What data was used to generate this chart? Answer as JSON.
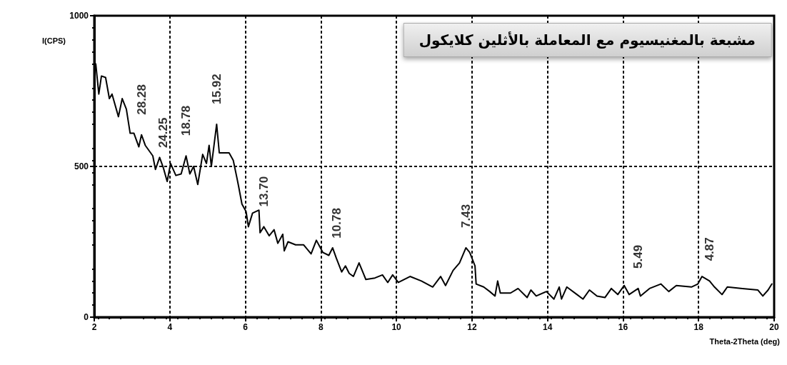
{
  "chart_data": {
    "type": "line",
    "title": "مشبعة بالمغنيسيوم مع المعاملة بالأثلين كلايكول",
    "xlabel": "Theta-2Theta (deg)",
    "ylabel": "I(CPS)",
    "xlim": [
      2,
      20
    ],
    "xticks": [
      2,
      4,
      6,
      8,
      10,
      12,
      14,
      16,
      18,
      20
    ],
    "ylim": [
      0,
      1000
    ],
    "yticks": [
      0,
      500,
      1000
    ],
    "grid": true,
    "marker": "none",
    "line_style": "solid",
    "series": [
      {
        "color": "#000000",
        "x": [
          2.04,
          2.12,
          2.19,
          2.3,
          2.4,
          2.47,
          2.64,
          2.74,
          2.85,
          2.95,
          3.05,
          3.18,
          3.25,
          3.35,
          3.55,
          3.62,
          3.73,
          3.83,
          3.93,
          4.02,
          4.16,
          4.3,
          4.43,
          4.53,
          4.63,
          4.74,
          4.87,
          4.97,
          5.04,
          5.1,
          5.24,
          5.31,
          5.44,
          5.57,
          5.68,
          5.78,
          5.82,
          5.91,
          6.02,
          6.08,
          6.19,
          6.36,
          6.39,
          6.49,
          6.63,
          6.76,
          6.86,
          6.99,
          7.03,
          7.13,
          7.33,
          7.54,
          7.74,
          7.88,
          8.05,
          8.21,
          8.31,
          8.41,
          8.55,
          8.65,
          8.75,
          8.86,
          9.01,
          9.19,
          9.43,
          9.63,
          9.77,
          9.9,
          10.05,
          10.36,
          10.66,
          10.96,
          11.17,
          11.3,
          11.5,
          11.67,
          11.84,
          11.94,
          12.08,
          12.11,
          12.31,
          12.47,
          12.61,
          12.68,
          12.75,
          13.02,
          13.22,
          13.46,
          13.56,
          13.7,
          13.97,
          14.17,
          14.31,
          14.37,
          14.51,
          14.78,
          14.94,
          15.11,
          15.31,
          15.52,
          15.69,
          15.86,
          16.03,
          16.16,
          16.4,
          16.46,
          16.7,
          17.0,
          17.21,
          17.41,
          17.81,
          17.98,
          18.09,
          18.29,
          18.42,
          18.62,
          18.76,
          19.16,
          19.57,
          19.7,
          19.84,
          19.94
        ],
        "values": [
          840,
          740,
          800,
          795,
          725,
          740,
          665,
          725,
          690,
          610,
          610,
          565,
          605,
          570,
          535,
          490,
          530,
          495,
          450,
          510,
          470,
          475,
          535,
          475,
          500,
          440,
          540,
          510,
          570,
          500,
          640,
          545,
          545,
          545,
          520,
          460,
          435,
          375,
          350,
          300,
          345,
          355,
          280,
          300,
          270,
          290,
          245,
          275,
          220,
          250,
          240,
          240,
          210,
          255,
          215,
          205,
          230,
          195,
          150,
          170,
          145,
          135,
          180,
          125,
          130,
          140,
          115,
          140,
          115,
          135,
          120,
          100,
          135,
          105,
          155,
          180,
          230,
          215,
          170,
          110,
          100,
          85,
          70,
          120,
          80,
          80,
          95,
          65,
          90,
          70,
          85,
          60,
          100,
          60,
          100,
          75,
          60,
          90,
          70,
          65,
          95,
          75,
          105,
          75,
          95,
          70,
          95,
          110,
          85,
          105,
          100,
          110,
          135,
          120,
          100,
          75,
          100,
          95,
          90,
          70,
          90,
          110
        ]
      }
    ],
    "annotations": [
      {
        "text": "28.28",
        "x": 3.25,
        "y": 605
      },
      {
        "text": "24.25",
        "x": 3.83,
        "y": 495
      },
      {
        "text": "18.78",
        "x": 4.43,
        "y": 535
      },
      {
        "text": "15.92",
        "x": 5.24,
        "y": 640
      },
      {
        "text": "13.70",
        "x": 6.49,
        "y": 300
      },
      {
        "text": "10.78",
        "x": 8.41,
        "y": 195
      },
      {
        "text": "7.43",
        "x": 11.84,
        "y": 230
      },
      {
        "text": "5.49",
        "x": 16.4,
        "y": 95
      },
      {
        "text": "4.87",
        "x": 18.29,
        "y": 120
      }
    ]
  }
}
